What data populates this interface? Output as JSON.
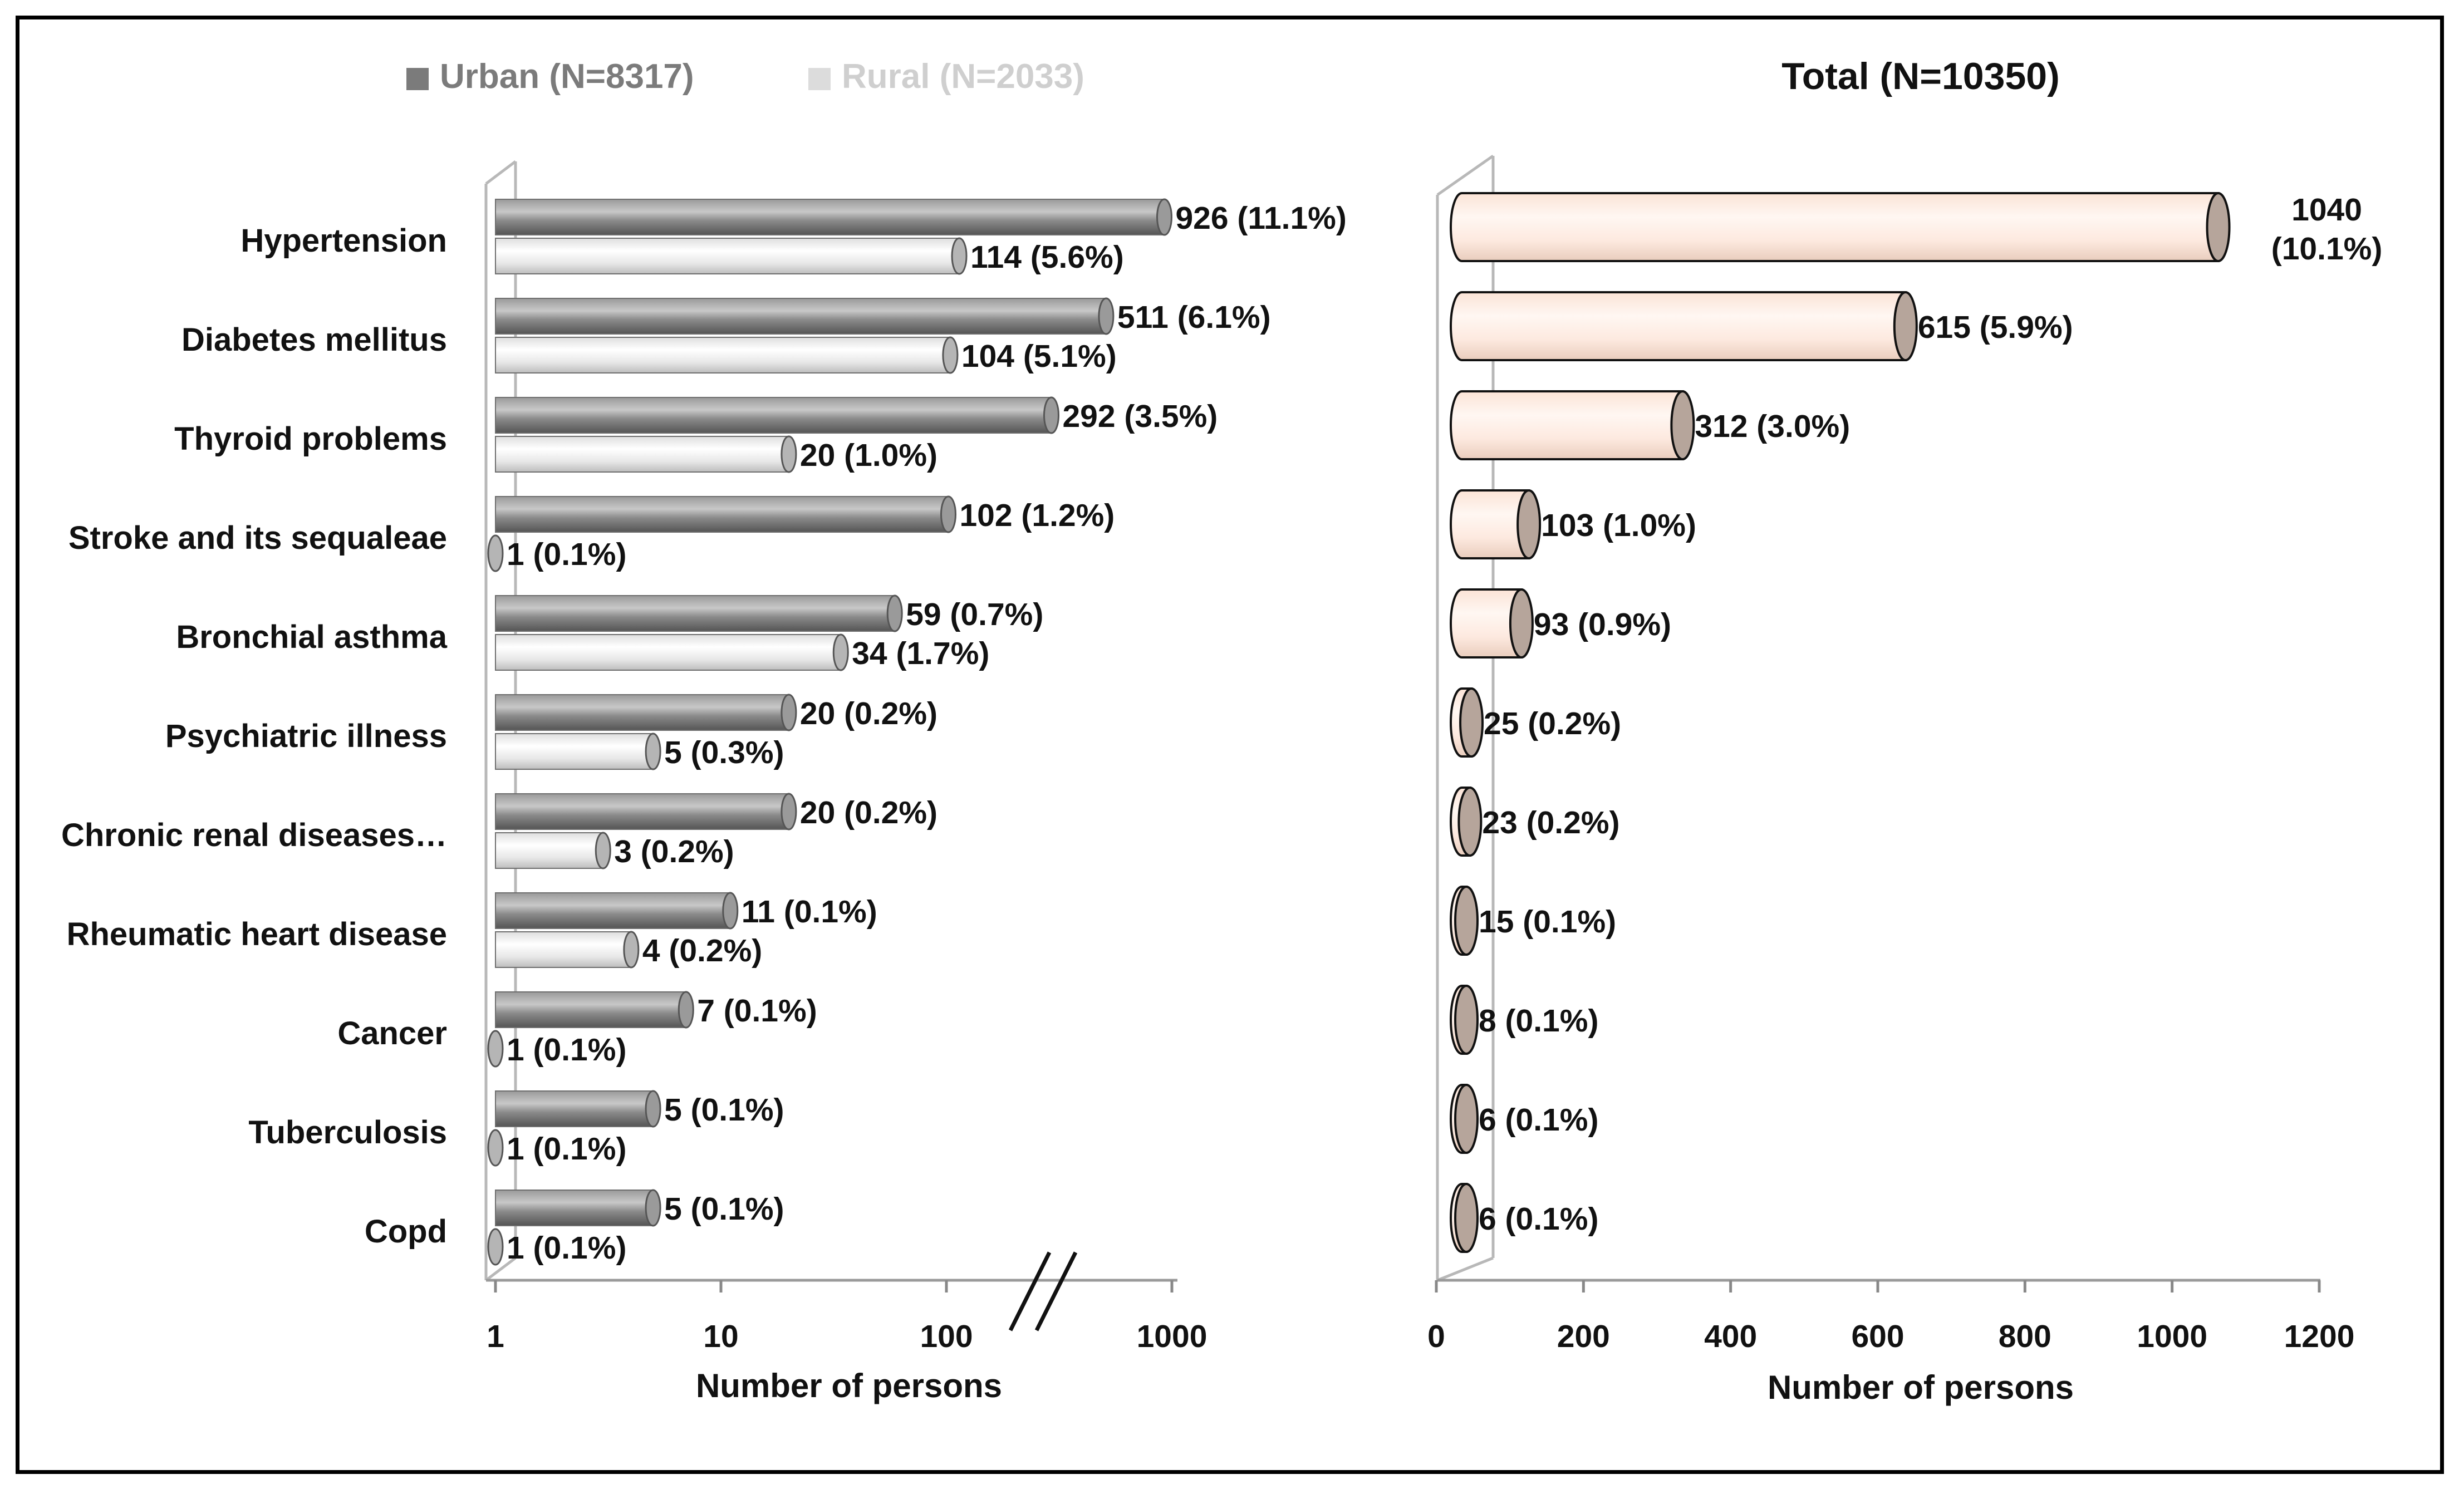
{
  "chart_data": [
    {
      "type": "bar",
      "orientation": "horizontal",
      "xscale": "log",
      "xlim": [
        1,
        1000
      ],
      "xticks": [
        "1",
        "10",
        "100",
        "1000"
      ],
      "xlabel": "Number of persons",
      "categories": [
        "Hypertension",
        "Diabetes mellitus",
        "Thyroid problems",
        "Stroke and its sequaleae",
        "Bronchial asthma",
        "Psychiatric illness",
        "Chronic renal diseases…",
        "Rheumatic heart disease",
        "Cancer",
        "Tuberculosis",
        "Copd"
      ],
      "legend_position": "top",
      "series": [
        {
          "name": "Urban (N=8317)",
          "color": "#7b7b7b",
          "values": [
            926,
            511,
            292,
            102,
            59,
            20,
            20,
            11,
            7,
            5,
            5
          ],
          "labels": [
            "926 (11.1%)",
            "511 (6.1%)",
            "292 (3.5%)",
            "102 (1.2%)",
            "59 (0.7%)",
            "20 (0.2%)",
            "20 (0.2%)",
            "11 (0.1%)",
            "7 (0.1%)",
            "5 (0.1%)",
            "5 (0.1%)"
          ]
        },
        {
          "name": "Rural (N=2033)",
          "color": "#e6e6e6",
          "values": [
            114,
            104,
            20,
            1,
            34,
            5,
            3,
            4,
            1,
            1,
            1
          ],
          "labels": [
            "114 (5.6%)",
            "104 (5.1%)",
            "20 (1.0%)",
            "1 (0.1%)",
            "34 (1.7%)",
            "5 (0.3%)",
            "3 (0.2%)",
            "4 (0.2%)",
            "1 (0.1%)",
            "1 (0.1%)",
            "1 (0.1%)"
          ]
        }
      ]
    },
    {
      "type": "bar",
      "orientation": "horizontal",
      "title": "Total (N=10350)",
      "xlim": [
        0,
        1200
      ],
      "xticks": [
        "0",
        "200",
        "400",
        "600",
        "800",
        "1000",
        "1200"
      ],
      "xlabel": "Number of persons",
      "categories": [
        "Hypertension",
        "Diabetes mellitus",
        "Thyroid problems",
        "Stroke and its sequaleae",
        "Bronchial asthma",
        "Psychiatric illness",
        "Chronic renal diseases…",
        "Rheumatic heart disease",
        "Cancer",
        "Tuberculosis",
        "Copd"
      ],
      "series": [
        {
          "name": "Total (N=10350)",
          "color": "#fde9df",
          "values": [
            1040,
            615,
            312,
            103,
            93,
            25,
            23,
            15,
            8,
            6,
            6
          ],
          "labels": [
            "1040 (10.1%)",
            "615 (5.9%)",
            "312 (3.0%)",
            "103 (1.0%)",
            "93 (0.9%)",
            "25 (0.2%)",
            "23 (0.2%)",
            "15 (0.1%)",
            "8 (0.1%)",
            "6 (0.1%)",
            "6 (0.1%)"
          ]
        }
      ]
    }
  ]
}
